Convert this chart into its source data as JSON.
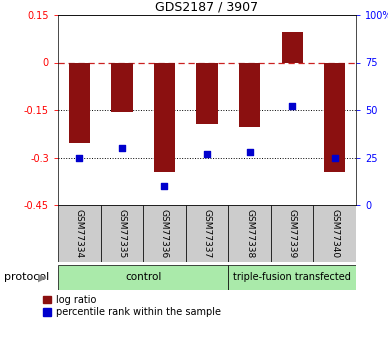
{
  "title": "GDS2187 / 3907",
  "samples": [
    "GSM77334",
    "GSM77335",
    "GSM77336",
    "GSM77337",
    "GSM77338",
    "GSM77339",
    "GSM77340"
  ],
  "log_ratio": [
    -0.255,
    -0.155,
    -0.345,
    -0.195,
    -0.205,
    0.095,
    -0.345
  ],
  "percentile_rank": [
    25,
    30,
    10,
    27,
    28,
    52,
    25
  ],
  "ylim_left": [
    -0.45,
    0.15
  ],
  "ylim_right": [
    0,
    100
  ],
  "yticks_left": [
    0.15,
    0.0,
    -0.15,
    -0.3,
    -0.45
  ],
  "yticks_right": [
    100,
    75,
    50,
    25,
    0
  ],
  "bar_color": "#8B1010",
  "dot_color": "#0000CD",
  "bar_width": 0.5,
  "n_control": 4,
  "n_triple": 3,
  "control_label": "control",
  "triple_fusion_label": "triple-fusion transfected",
  "protocol_label": "protocol",
  "legend_log_ratio": "log ratio",
  "legend_percentile": "percentile rank within the sample",
  "control_color": "#AAEAAA",
  "triple_fusion_color": "#AAEAAA",
  "tick_box_color": "#CCCCCC",
  "title_fontsize": 9,
  "tick_fontsize": 7,
  "label_fontsize": 6.5,
  "proto_fontsize": 7.5,
  "legend_fontsize": 7
}
